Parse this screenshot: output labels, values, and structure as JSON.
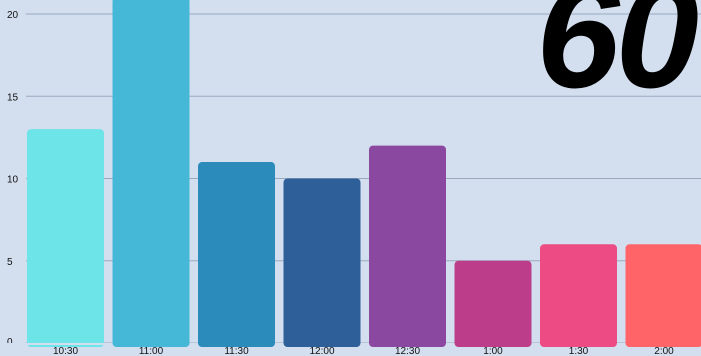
{
  "overlay": {
    "big_number": "60"
  },
  "chart_data": {
    "type": "bar",
    "categories": [
      "10:30",
      "11:00",
      "11:30",
      "12:00",
      "12:30",
      "1:00",
      "1:30",
      "2:00"
    ],
    "values": [
      13,
      21,
      11,
      10,
      12,
      5,
      6,
      6
    ],
    "colors": [
      "#6de4e8",
      "#45b8d8",
      "#2b8cbb",
      "#2e5f98",
      "#8a48a0",
      "#bc3e8b",
      "#ec4b83",
      "#ff6469"
    ],
    "yticks": [
      0,
      5,
      10,
      15,
      20
    ],
    "ylim": [
      0,
      20.8
    ],
    "grid": true,
    "gridColor": "#9aaabf",
    "title": "",
    "xlabel": "",
    "ylabel": ""
  }
}
